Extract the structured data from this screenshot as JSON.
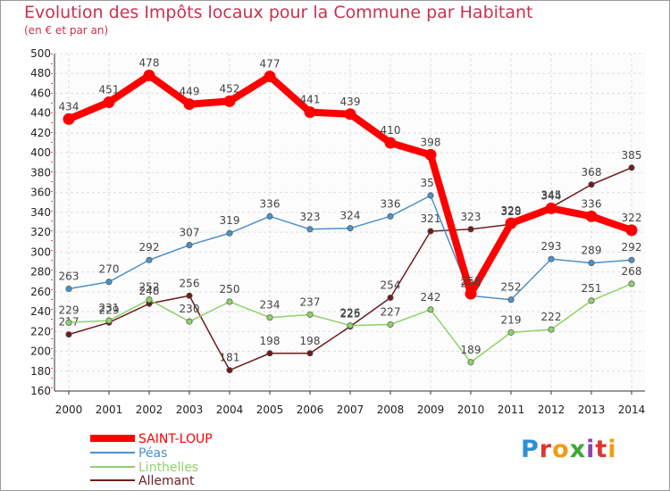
{
  "title": "Evolution des Impôts locaux pour la Commune par Habitant",
  "subtitle": "(en € et par an)",
  "brand": {
    "letters": [
      "P",
      "r",
      "o",
      "x",
      "i",
      "t",
      "i"
    ],
    "colors": [
      "#2e8fd6",
      "#e3342f",
      "#f39c12",
      "#3aaa35",
      "#8e44ad",
      "#e3342f",
      "#f39c12"
    ]
  },
  "chart_data": {
    "type": "line",
    "x": [
      "2000",
      "2001",
      "2002",
      "2003",
      "2004",
      "2005",
      "2006",
      "2007",
      "2008",
      "2009",
      "2010",
      "2011",
      "2012",
      "2013",
      "2014"
    ],
    "ylim": [
      160,
      500
    ],
    "yticks": [
      160,
      180,
      200,
      220,
      240,
      260,
      280,
      300,
      320,
      340,
      360,
      380,
      400,
      420,
      440,
      460,
      480,
      500
    ],
    "grid": true,
    "legend_position": "bottom-left",
    "series": [
      {
        "name": "SAINT-LOUP",
        "color": "#ff0000",
        "values": [
          434,
          451,
          478,
          449,
          452,
          477,
          441,
          439,
          410,
          398,
          258,
          329,
          344,
          336,
          322
        ]
      },
      {
        "name": "Péas",
        "color": "#4d91c8",
        "values": [
          263,
          270,
          292,
          307,
          319,
          336,
          323,
          324,
          336,
          357,
          256,
          252,
          293,
          289,
          292
        ]
      },
      {
        "name": "Linthelles",
        "color": "#8fd16a",
        "values": [
          229,
          231,
          252,
          230,
          250,
          234,
          237,
          226,
          227,
          242,
          189,
          219,
          222,
          251,
          268
        ]
      },
      {
        "name": "Allemant",
        "color": "#6e1d1d",
        "values": [
          217,
          229,
          248,
          256,
          181,
          198,
          198,
          225,
          254,
          321,
          323,
          328,
          345,
          368,
          385
        ]
      }
    ]
  }
}
